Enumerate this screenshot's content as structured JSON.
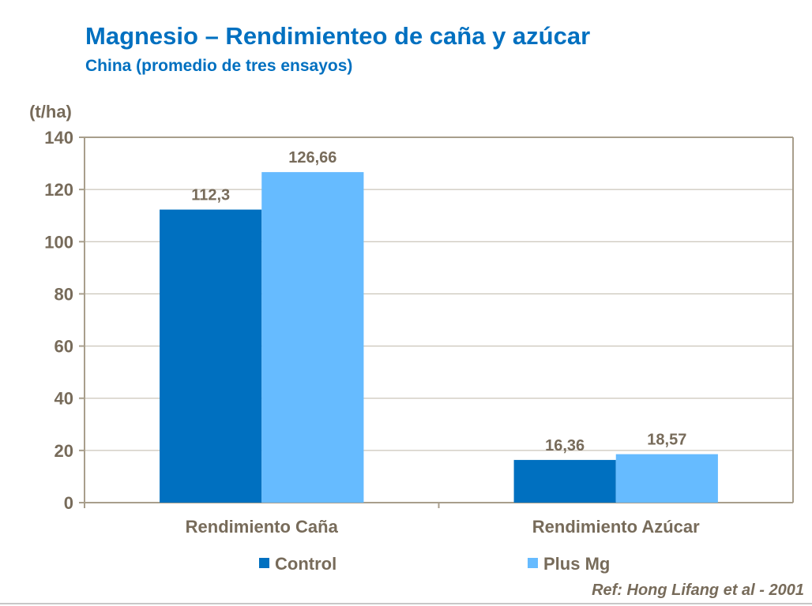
{
  "title": "Magnesio – Rendimienteo de caña y azúcar",
  "subtitle": "China (promedio de tres ensayos)",
  "reference": "Ref: Hong Lifang et al - 2001",
  "chart_data": {
    "type": "bar",
    "ylabel": "(t/ha)",
    "ylim": [
      0,
      140
    ],
    "yticks": [
      0,
      20,
      40,
      60,
      80,
      100,
      120,
      140
    ],
    "grid": true,
    "legend_position": "bottom",
    "categories": [
      "Rendimiento Caña",
      "Rendimiento Azúcar"
    ],
    "series": [
      {
        "name": "Control",
        "values": [
          112.3,
          16.36
        ],
        "labels": [
          "112,3",
          "16,36"
        ],
        "color": "#0070C0"
      },
      {
        "name": "Plus Mg",
        "values": [
          126.66,
          18.57
        ],
        "labels": [
          "126,66",
          "18,57"
        ],
        "color": "#66BBFF"
      }
    ]
  },
  "colors": {
    "title": "#0070C0",
    "text": "#776B5A",
    "axis": "#A89E8C",
    "grid": "#BFB8AA"
  }
}
